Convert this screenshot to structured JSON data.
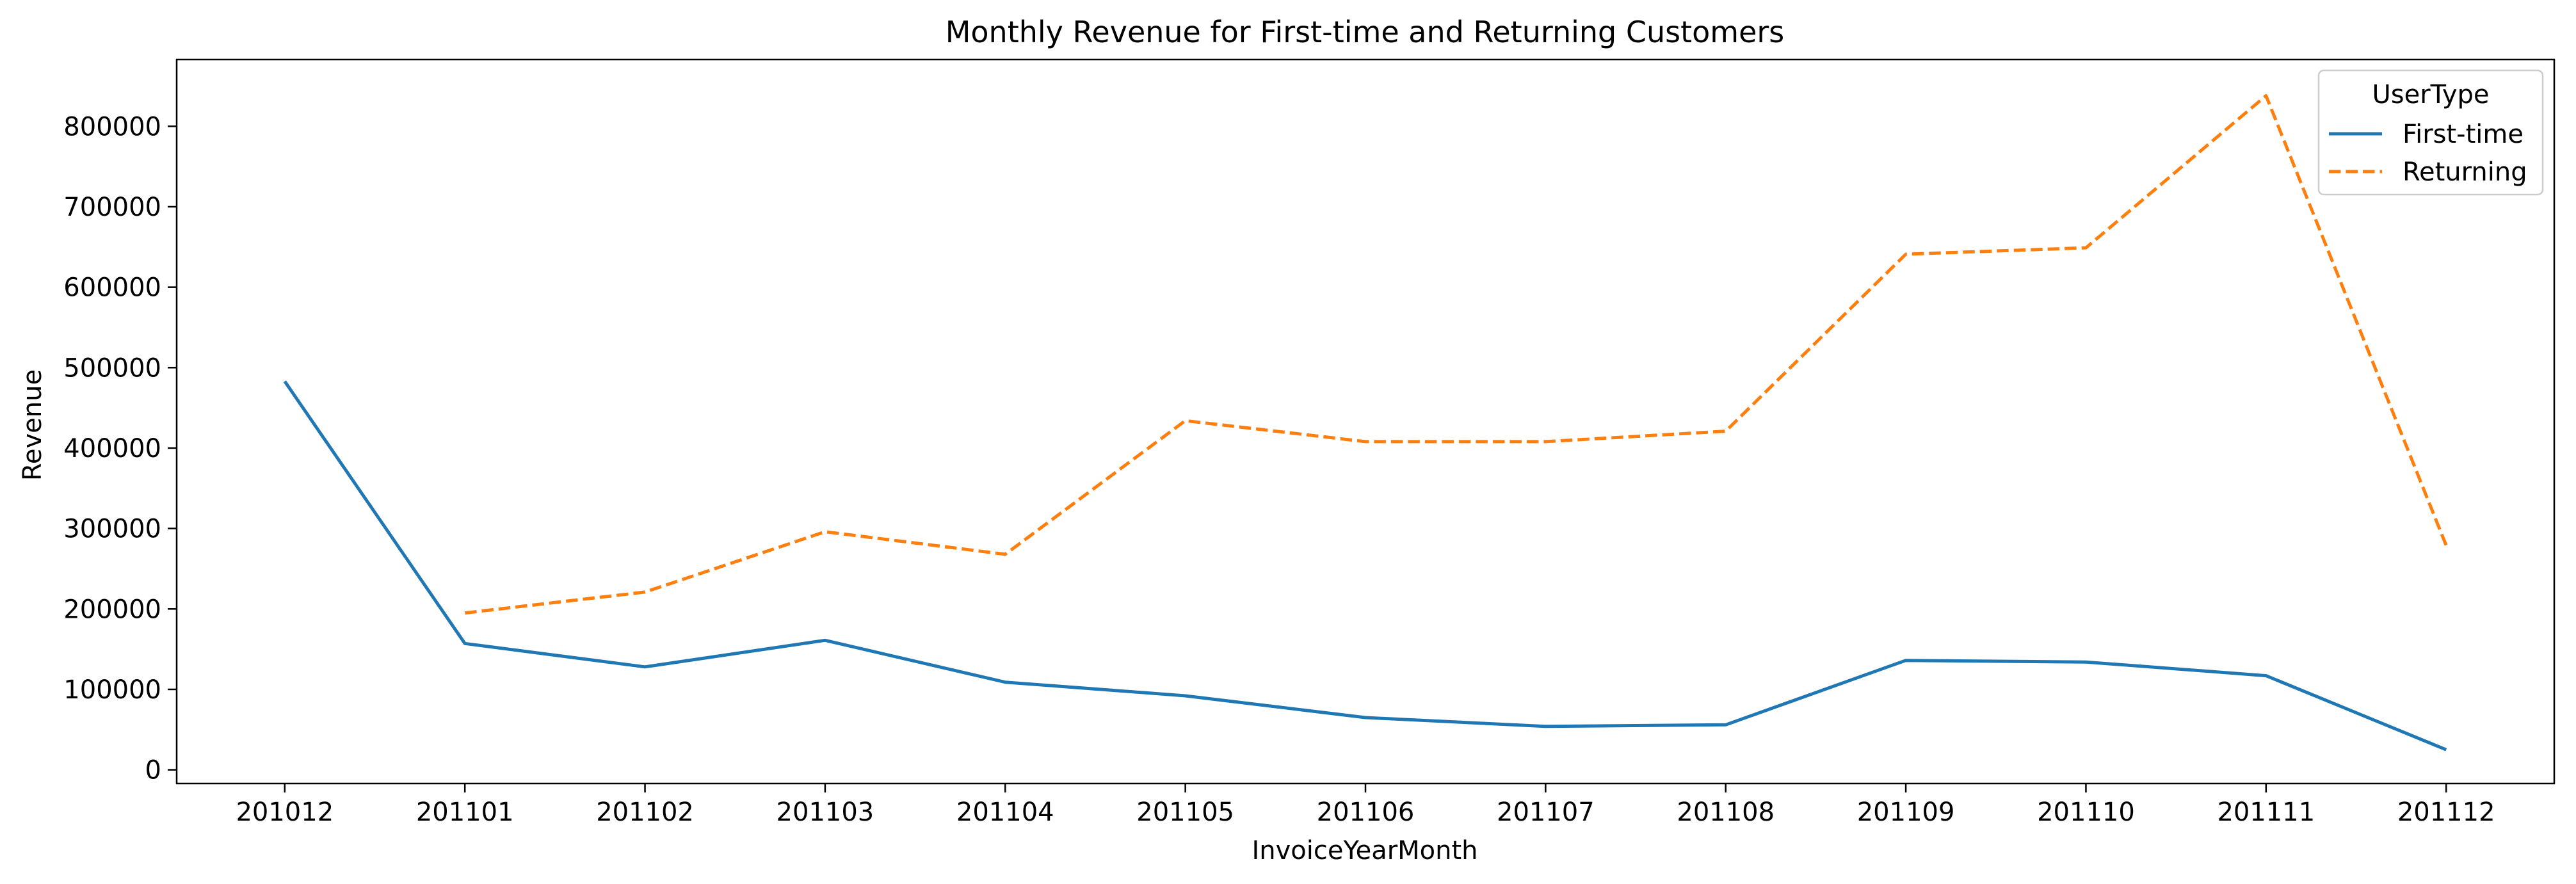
{
  "chart_data": {
    "type": "line",
    "title": "Monthly Revenue for First-time and Returning Customers",
    "xlabel": "InvoiceYearMonth",
    "ylabel": "Revenue",
    "categories": [
      "201012",
      "201101",
      "201102",
      "201103",
      "201104",
      "201105",
      "201106",
      "201107",
      "201108",
      "201109",
      "201110",
      "201111",
      "201112"
    ],
    "ylim": [
      -17000,
      883000
    ],
    "yticks": [
      0,
      100000,
      200000,
      300000,
      400000,
      500000,
      600000,
      700000,
      800000
    ],
    "ytick_labels": [
      "0",
      "100000",
      "200000",
      "300000",
      "400000",
      "500000",
      "600000",
      "700000",
      "800000"
    ],
    "grid": false,
    "legend": {
      "title": "UserType",
      "placement": "top-right"
    },
    "series": [
      {
        "name": "First-time",
        "color": "#1f77b4",
        "dash": "solid",
        "values": [
          483000,
          157000,
          128000,
          161000,
          109000,
          92000,
          65000,
          54000,
          56000,
          136000,
          134000,
          117000,
          25000
        ]
      },
      {
        "name": "Returning",
        "color": "#ff7f0e",
        "dash": "dashed",
        "values": [
          null,
          195000,
          221000,
          296000,
          268000,
          434000,
          408000,
          408000,
          421000,
          641000,
          649000,
          838000,
          279000
        ]
      }
    ]
  }
}
